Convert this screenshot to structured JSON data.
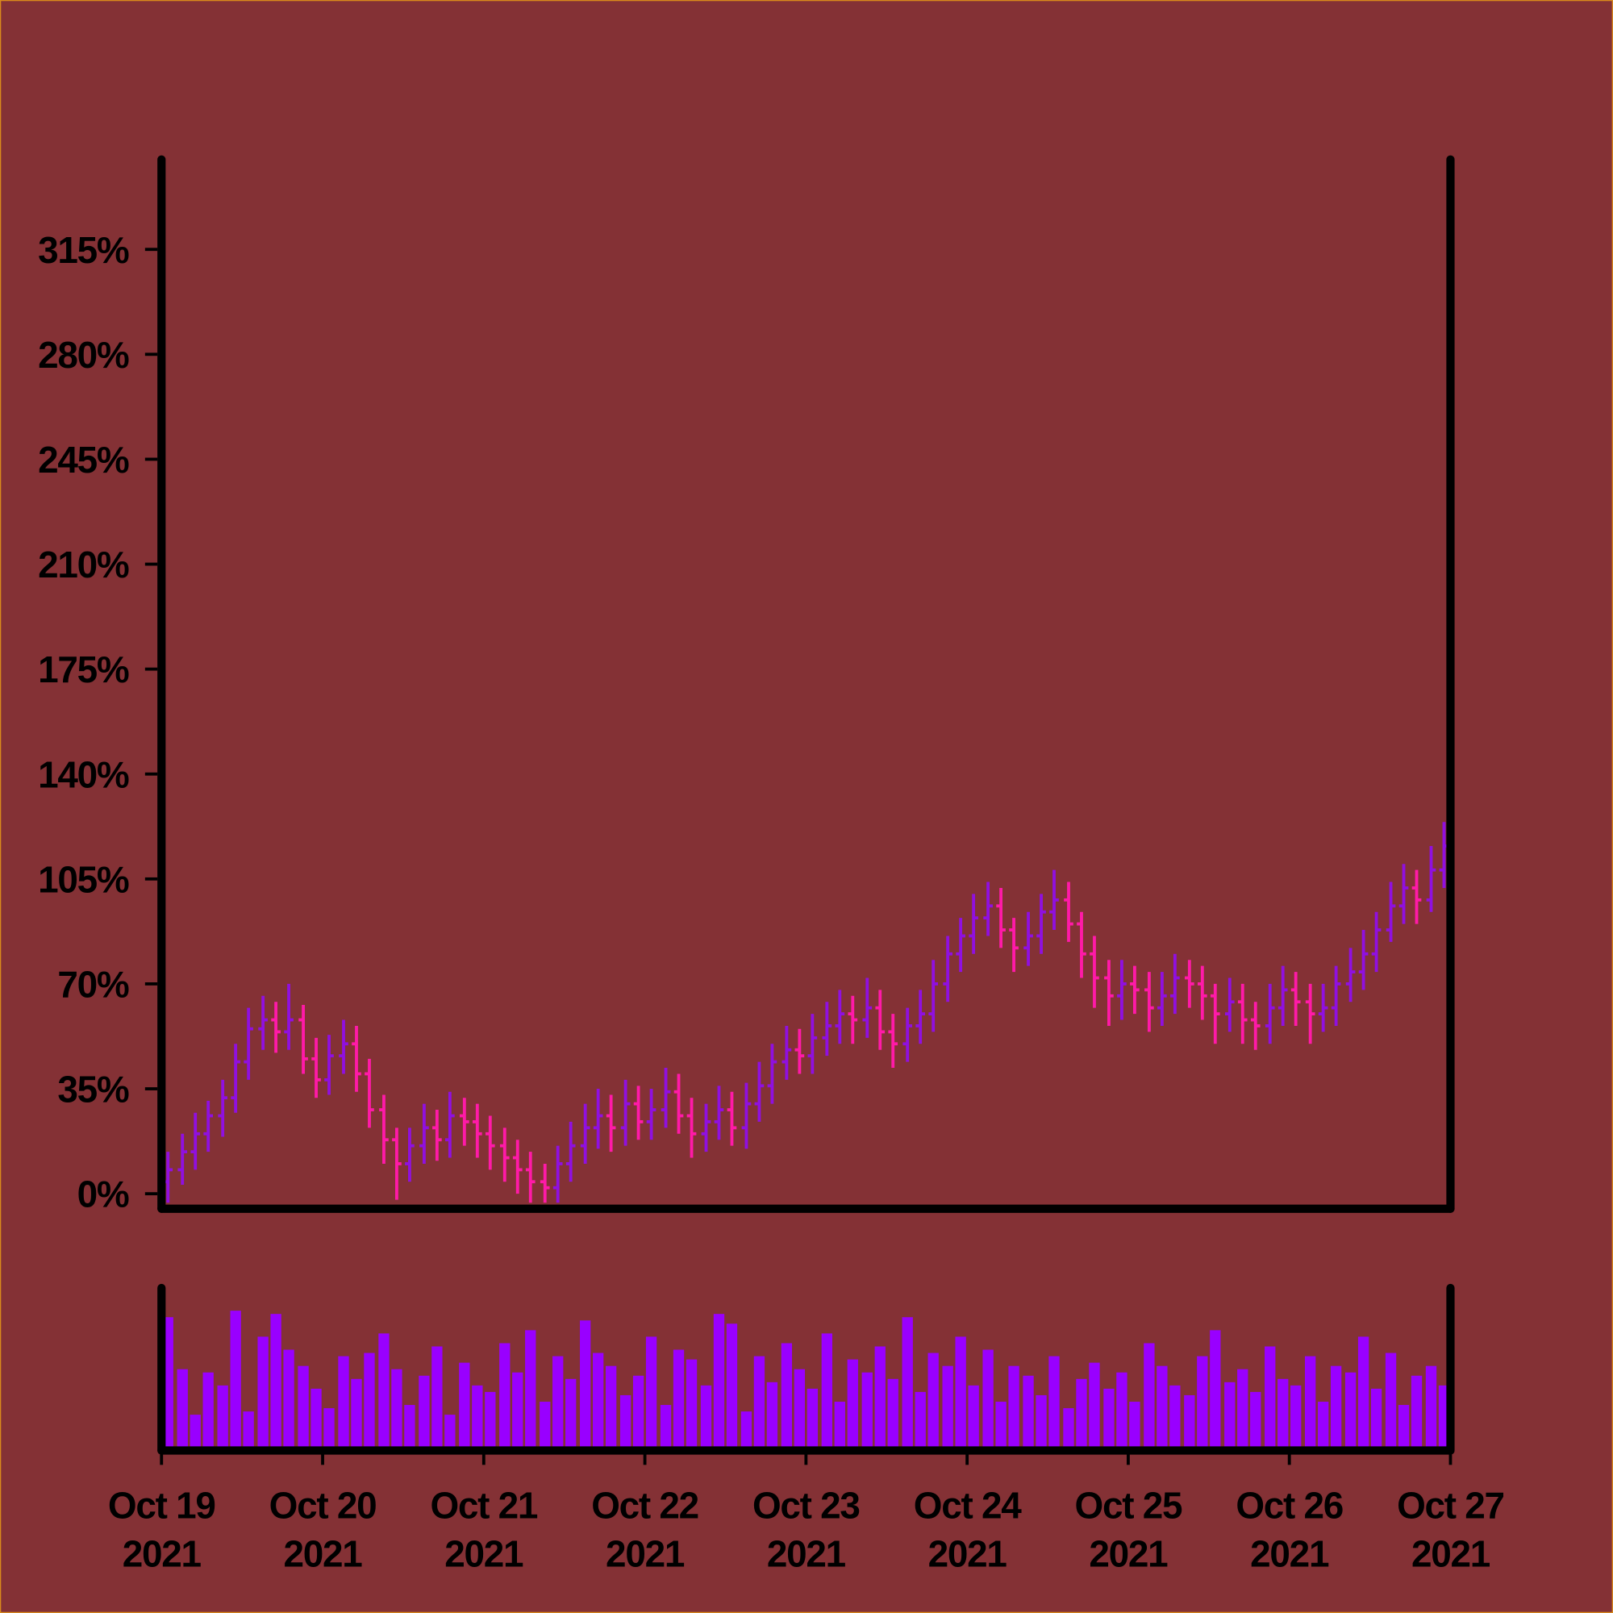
{
  "chart_data": {
    "type": "ohlc",
    "x": [
      0.04,
      0.13,
      0.21,
      0.29,
      0.38,
      0.46,
      0.54,
      0.63,
      0.71,
      0.79,
      0.88,
      0.96,
      1.04,
      1.13,
      1.21,
      1.29,
      1.38,
      1.46,
      1.54,
      1.63,
      1.71,
      1.79,
      1.88,
      1.96,
      2.04,
      2.13,
      2.21,
      2.29,
      2.38,
      2.46,
      2.54,
      2.63,
      2.71,
      2.79,
      2.88,
      2.96,
      3.04,
      3.13,
      3.21,
      3.29,
      3.38,
      3.46,
      3.54,
      3.63,
      3.71,
      3.79,
      3.88,
      3.96,
      4.04,
      4.13,
      4.21,
      4.29,
      4.38,
      4.46,
      4.54,
      4.63,
      4.71,
      4.79,
      4.88,
      4.96,
      5.04,
      5.13,
      5.21,
      5.29,
      5.38,
      5.46,
      5.54,
      5.63,
      5.71,
      5.79,
      5.88,
      5.96,
      6.04,
      6.13,
      6.21,
      6.29,
      6.38,
      6.46,
      6.54,
      6.63,
      6.71,
      6.79,
      6.88,
      6.96,
      7.04,
      7.13,
      7.21,
      7.29,
      7.38,
      7.46,
      7.54,
      7.63,
      7.71,
      7.79,
      7.88,
      7.96
    ],
    "open": [
      4,
      8,
      14,
      20,
      26,
      32,
      44,
      55,
      58,
      54,
      58,
      45,
      38,
      46,
      50,
      40,
      28,
      18,
      10,
      16,
      22,
      18,
      26,
      24,
      20,
      16,
      12,
      8,
      4,
      2,
      10,
      16,
      22,
      26,
      22,
      30,
      24,
      28,
      34,
      26,
      20,
      24,
      28,
      22,
      30,
      36,
      44,
      48,
      46,
      52,
      56,
      60,
      58,
      62,
      54,
      50,
      56,
      60,
      70,
      80,
      86,
      92,
      96,
      88,
      82,
      86,
      94,
      98,
      90,
      80,
      72,
      66,
      70,
      68,
      62,
      66,
      72,
      70,
      66,
      60,
      64,
      58,
      56,
      62,
      68,
      64,
      60,
      62,
      70,
      74,
      80,
      88,
      96,
      102,
      98,
      108
    ],
    "high": [
      14,
      20,
      27,
      31,
      38,
      50,
      62,
      66,
      64,
      70,
      63,
      52,
      53,
      58,
      56,
      45,
      33,
      22,
      22,
      30,
      28,
      34,
      32,
      30,
      26,
      22,
      18,
      14,
      10,
      16,
      24,
      30,
      35,
      33,
      38,
      36,
      35,
      42,
      40,
      32,
      30,
      36,
      34,
      37,
      44,
      50,
      56,
      55,
      60,
      64,
      68,
      66,
      72,
      68,
      60,
      62,
      68,
      78,
      86,
      92,
      100,
      104,
      102,
      92,
      94,
      100,
      108,
      104,
      94,
      86,
      78,
      78,
      76,
      74,
      74,
      80,
      78,
      76,
      70,
      72,
      70,
      64,
      70,
      76,
      74,
      70,
      70,
      76,
      82,
      88,
      94,
      104,
      110,
      108,
      116,
      124
    ],
    "low": [
      -3,
      3,
      8,
      14,
      19,
      27,
      38,
      48,
      47,
      48,
      40,
      32,
      33,
      40,
      34,
      22,
      10,
      -2,
      4,
      10,
      11,
      12,
      16,
      12,
      8,
      4,
      0,
      -3,
      -3,
      -3,
      4,
      10,
      15,
      14,
      16,
      18,
      18,
      22,
      20,
      12,
      14,
      18,
      16,
      15,
      24,
      30,
      38,
      40,
      40,
      46,
      50,
      50,
      52,
      48,
      42,
      44,
      50,
      54,
      64,
      74,
      80,
      86,
      82,
      74,
      76,
      80,
      88,
      84,
      72,
      62,
      56,
      58,
      60,
      54,
      56,
      60,
      62,
      58,
      50,
      54,
      50,
      48,
      50,
      56,
      56,
      50,
      54,
      56,
      64,
      68,
      74,
      84,
      90,
      90,
      94,
      102
    ],
    "close": [
      8,
      14,
      20,
      26,
      32,
      44,
      55,
      58,
      54,
      58,
      45,
      38,
      46,
      50,
      40,
      28,
      18,
      10,
      16,
      22,
      18,
      26,
      24,
      20,
      16,
      12,
      8,
      4,
      2,
      10,
      16,
      22,
      26,
      22,
      30,
      24,
      28,
      34,
      26,
      20,
      24,
      28,
      22,
      30,
      36,
      44,
      48,
      46,
      52,
      56,
      60,
      58,
      62,
      54,
      50,
      56,
      60,
      70,
      80,
      86,
      92,
      96,
      88,
      82,
      86,
      94,
      98,
      90,
      80,
      72,
      66,
      70,
      68,
      62,
      66,
      72,
      70,
      66,
      60,
      64,
      58,
      56,
      62,
      68,
      64,
      60,
      62,
      70,
      74,
      80,
      88,
      96,
      102,
      98,
      108,
      116
    ],
    "volume": [
      82,
      50,
      22,
      48,
      40,
      86,
      24,
      70,
      84,
      62,
      52,
      38,
      26,
      58,
      44,
      60,
      72,
      50,
      28,
      46,
      64,
      22,
      54,
      40,
      36,
      66,
      48,
      74,
      30,
      58,
      44,
      80,
      60,
      52,
      34,
      46,
      70,
      28,
      62,
      56,
      40,
      84,
      78,
      24,
      58,
      42,
      66,
      50,
      38,
      72,
      30,
      56,
      48,
      64,
      44,
      82,
      36,
      60,
      52,
      70,
      40,
      62,
      30,
      52,
      46,
      34,
      58,
      26,
      44,
      54,
      38,
      48,
      30,
      66,
      52,
      40,
      34,
      58,
      74,
      42,
      50,
      36,
      64,
      44,
      40,
      58,
      30,
      52,
      48,
      70,
      38,
      60,
      28,
      46,
      52,
      40
    ],
    "xlim": [
      0,
      8
    ],
    "ylim": [
      -5,
      345
    ],
    "volume_ylim": [
      0,
      100
    ],
    "yticks": [
      {
        "value": 0,
        "label": "0%"
      },
      {
        "value": 35,
        "label": "35%"
      },
      {
        "value": 70,
        "label": "70%"
      },
      {
        "value": 105,
        "label": "105%"
      },
      {
        "value": 140,
        "label": "140%"
      },
      {
        "value": 175,
        "label": "175%"
      },
      {
        "value": 210,
        "label": "210%"
      },
      {
        "value": 245,
        "label": "245%"
      },
      {
        "value": 280,
        "label": "280%"
      },
      {
        "value": 315,
        "label": "315%"
      }
    ],
    "xticks": [
      {
        "value": 0,
        "label": "Oct 19 2021"
      },
      {
        "value": 1,
        "label": "Oct 20 2021"
      },
      {
        "value": 2,
        "label": "Oct 21 2021"
      },
      {
        "value": 3,
        "label": "Oct 22 2021"
      },
      {
        "value": 4,
        "label": "Oct 23 2021"
      },
      {
        "value": 5,
        "label": "Oct 24 2021"
      },
      {
        "value": 6,
        "label": "Oct 25 2021"
      },
      {
        "value": 7,
        "label": "Oct 26 2021"
      },
      {
        "value": 8,
        "label": "Oct 27 2021"
      }
    ],
    "up_color": "#9010e0",
    "down_color": "#ff1aa8",
    "volume_color": "#9900ff"
  }
}
